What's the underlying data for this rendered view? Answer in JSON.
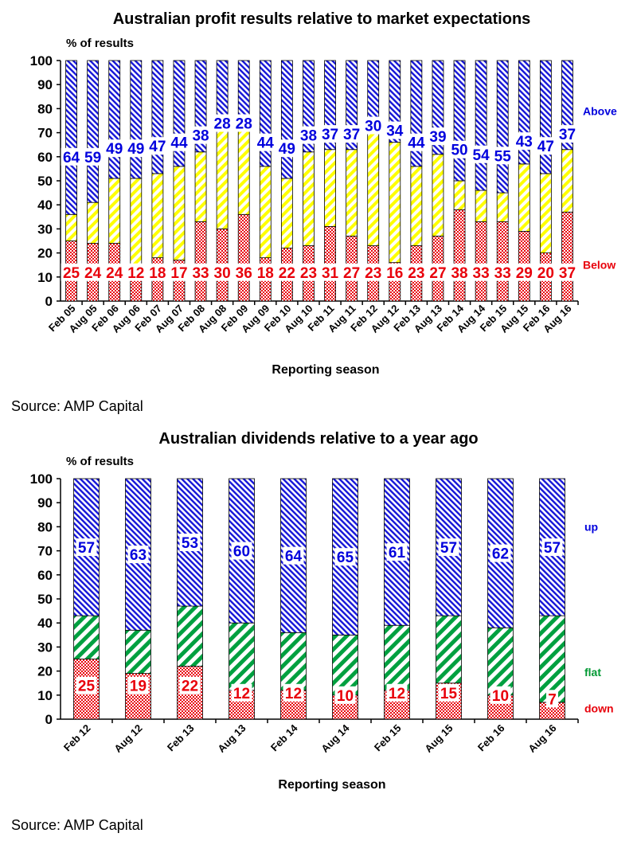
{
  "chart_data": [
    {
      "type": "bar",
      "stacked": true,
      "title": "Australian profit results relative to market expectations",
      "ylabel": "% of results",
      "xlabel": "Reporting season",
      "ylim": [
        0,
        100
      ],
      "yticks": [
        "0",
        "10",
        "20",
        "30",
        "40",
        "50",
        "60",
        "70",
        "80",
        "90",
        "100"
      ],
      "categories": [
        "Feb 05",
        "Aug 05",
        "Feb 06",
        "Aug 06",
        "Feb 07",
        "Aug 07",
        "Feb 08",
        "Aug 08",
        "Feb 09",
        "Aug 09",
        "Feb 10",
        "Aug 10",
        "Feb 11",
        "Aug 11",
        "Feb 12",
        "Aug 12",
        "Feb 13",
        "Aug 13",
        "Feb 14",
        "Aug 14",
        "Feb 15",
        "Aug 15",
        "Feb 16",
        "Aug 16"
      ],
      "series": [
        {
          "name": "Below",
          "color": "#e8000b",
          "values": [
            25,
            24,
            24,
            12,
            18,
            17,
            33,
            30,
            36,
            18,
            22,
            23,
            31,
            27,
            23,
            16,
            23,
            27,
            38,
            33,
            33,
            29,
            20,
            37
          ]
        },
        {
          "color": "#ffff00",
          "values": [
            11,
            17,
            27,
            39,
            35,
            39,
            29,
            42,
            36,
            38,
            29,
            39,
            32,
            36,
            47,
            50,
            33,
            34,
            12,
            13,
            12,
            28,
            33,
            26
          ]
        },
        {
          "name": "Above",
          "color": "#0000dd",
          "values": [
            64,
            59,
            49,
            49,
            47,
            44,
            38,
            28,
            28,
            44,
            49,
            38,
            37,
            37,
            30,
            34,
            44,
            39,
            50,
            54,
            55,
            43,
            47,
            37
          ]
        }
      ],
      "data_labels": {
        "Below": [
          "25",
          "24",
          "24",
          "12",
          "18",
          "17",
          "33",
          "30",
          "36",
          "18",
          "22",
          "23",
          "31",
          "27",
          "23",
          "16",
          "23",
          "27",
          "38",
          "33",
          "33",
          "29",
          "20",
          "37"
        ],
        "Above": [
          "64",
          "59",
          "49",
          "49",
          "47",
          "44",
          "38",
          "28",
          "28",
          "44",
          "49",
          "38",
          "37",
          "37",
          "30",
          "34",
          "44",
          "39",
          "50",
          "54",
          "55",
          "43",
          "47",
          "37"
        ]
      },
      "legend": [
        {
          "label": "Above",
          "color": "#0000dd"
        },
        {
          "label": "Below",
          "color": "#e8000b"
        }
      ]
    },
    {
      "type": "bar",
      "stacked": true,
      "title": "Australian dividends relative to a year ago",
      "ylabel": "% of results",
      "xlabel": "Reporting season",
      "ylim": [
        0,
        100
      ],
      "yticks": [
        "0",
        "10",
        "20",
        "30",
        "40",
        "50",
        "60",
        "70",
        "80",
        "90",
        "100"
      ],
      "categories": [
        "Feb 12",
        "Aug 12",
        "Feb 13",
        "Aug 13",
        "Feb 14",
        "Aug 14",
        "Feb 15",
        "Aug 15",
        "Feb 16",
        "Aug 16"
      ],
      "series": [
        {
          "name": "down",
          "color": "#e8000b",
          "values": [
            25,
            19,
            22,
            12,
            12,
            10,
            12,
            15,
            10,
            7
          ]
        },
        {
          "name": "flat",
          "color": "#009933",
          "values": [
            18,
            18,
            25,
            28,
            24,
            25,
            27,
            28,
            28,
            36
          ]
        },
        {
          "name": "up",
          "color": "#0000dd",
          "values": [
            57,
            63,
            53,
            60,
            64,
            65,
            61,
            57,
            62,
            57
          ]
        }
      ],
      "data_labels": {
        "down": [
          "25",
          "19",
          "22",
          "12",
          "12",
          "10",
          "12",
          "15",
          "10",
          "7"
        ],
        "up": [
          "57",
          "63",
          "53",
          "60",
          "64",
          "65",
          "61",
          "57",
          "62",
          "57"
        ]
      },
      "legend": [
        {
          "label": "up",
          "color": "#0000dd"
        },
        {
          "label": "flat",
          "color": "#009933"
        },
        {
          "label": "down",
          "color": "#e8000b"
        }
      ]
    }
  ],
  "source1": "Source: AMP Capital",
  "source2": "Source: AMP Capital"
}
